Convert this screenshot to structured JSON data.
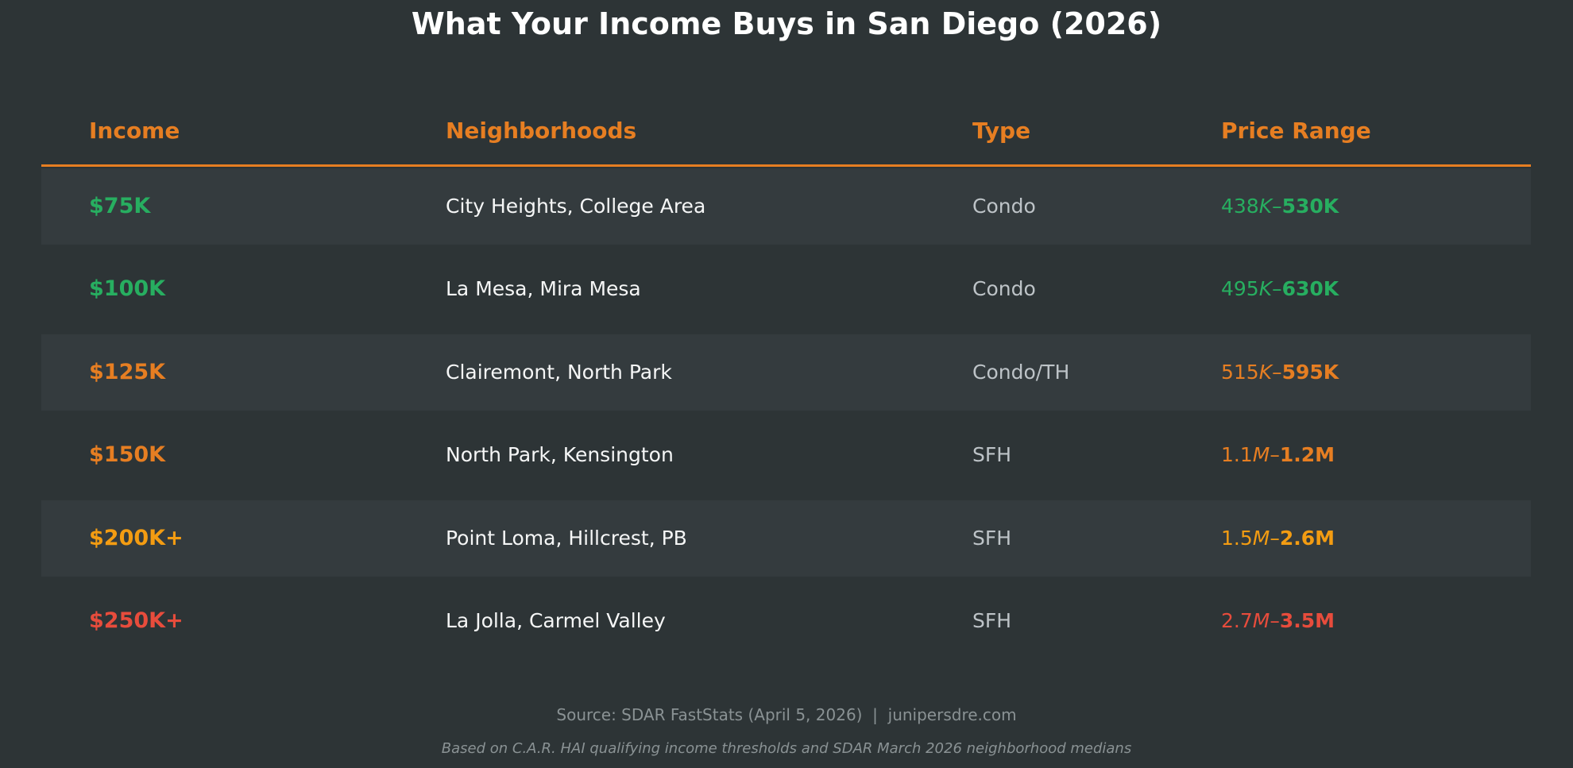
{
  "title": "What Your Income Buys in San Diego (2026)",
  "table": {
    "header": [
      "Income",
      "Neighborhoods",
      "Type",
      "Price Range"
    ],
    "header_color": "#e67e22",
    "rows": [
      {
        "income": "$75K",
        "neighborhoods": "City Heights, College Area",
        "type": "Condo",
        "price": [
          "438",
          "K",
          "–",
          "530K"
        ],
        "color": "#27ae60"
      },
      {
        "income": "$100K",
        "neighborhoods": "La Mesa, Mira Mesa",
        "type": "Condo",
        "price": [
          "495",
          "K",
          "–",
          "630K"
        ],
        "color": "#27ae60"
      },
      {
        "income": "$125K",
        "neighborhoods": "Clairemont, North Park",
        "type": "Condo/TH",
        "price": [
          "515",
          "K",
          "–",
          "595K"
        ],
        "color": "#e67e22"
      },
      {
        "income": "$150K",
        "neighborhoods": "North Park, Kensington",
        "type": "SFH",
        "price": [
          "1.1",
          "M",
          "–",
          "1.2M"
        ],
        "color": "#e67e22"
      },
      {
        "income": "$200K+",
        "neighborhoods": "Point Loma, Hillcrest, PB",
        "type": "SFH",
        "price": [
          "1.5",
          "M",
          "–",
          "2.6M"
        ],
        "color": "#f39c12"
      },
      {
        "income": "$250K+",
        "neighborhoods": "La Jolla, Carmel Valley",
        "type": "SFH",
        "price": [
          "2.7",
          "M",
          "–",
          "3.5M"
        ],
        "color": "#e74c3c"
      }
    ]
  },
  "footer": {
    "source": "Source: SDAR FastStats (April 5, 2026)  |  junipersdre.com",
    "note": "Based on C.A.R. HAI qualifying income thresholds and SDAR March 2026 neighborhood medians"
  }
}
